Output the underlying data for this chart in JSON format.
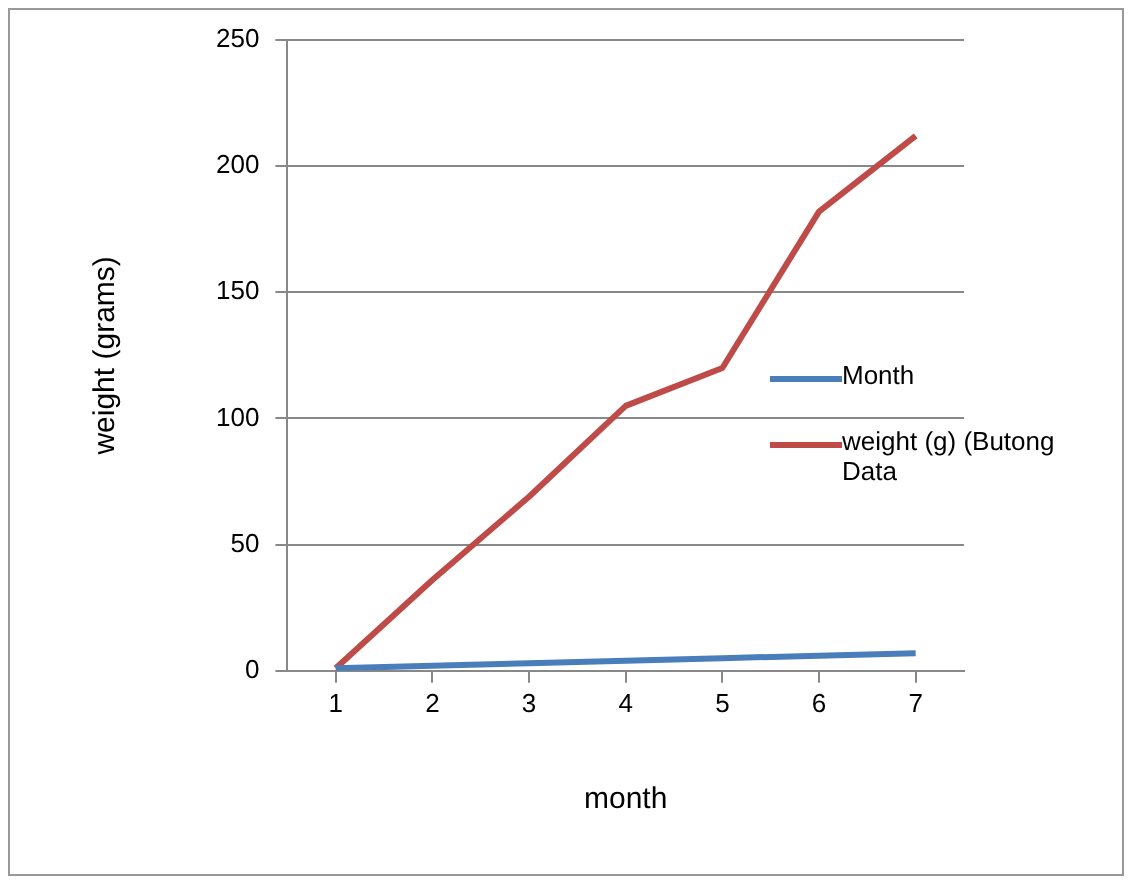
{
  "chart_data": {
    "type": "line",
    "xlabel": "month",
    "ylabel": "weight (grams)",
    "categories": [
      "1",
      "2",
      "3",
      "4",
      "5",
      "6",
      "7"
    ],
    "series": [
      {
        "name": "Month",
        "color": "#4a7ebb",
        "values": [
          1,
          2,
          3,
          4,
          5,
          6,
          7
        ]
      },
      {
        "name": "weight (g) (Butong Data",
        "color": "#be4b48",
        "values": [
          1,
          36,
          69,
          105,
          120,
          182,
          212
        ]
      }
    ],
    "ylim": [
      0,
      250
    ],
    "yticks": [
      0,
      50,
      100,
      150,
      200,
      250
    ],
    "grid": "y",
    "legend": "right",
    "marker": "none",
    "line_style": "solid"
  }
}
